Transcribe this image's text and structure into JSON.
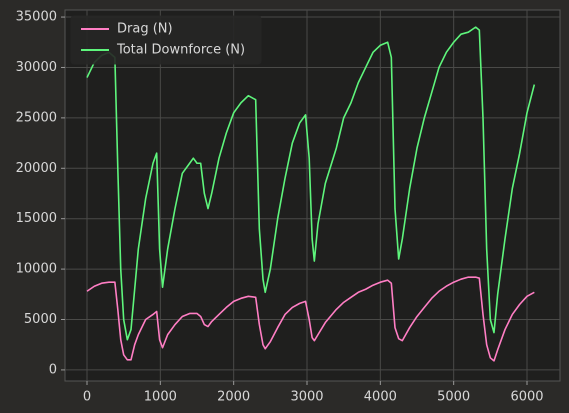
{
  "chart_data": {
    "type": "line",
    "x": [
      0,
      100,
      200,
      300,
      380,
      420,
      460,
      500,
      550,
      600,
      650,
      700,
      800,
      900,
      950,
      990,
      1030,
      1100,
      1200,
      1300,
      1400,
      1450,
      1500,
      1550,
      1600,
      1650,
      1700,
      1800,
      1900,
      2000,
      2100,
      2200,
      2300,
      2350,
      2400,
      2430,
      2500,
      2600,
      2700,
      2800,
      2900,
      2980,
      3030,
      3070,
      3100,
      3150,
      3250,
      3400,
      3500,
      3600,
      3700,
      3800,
      3900,
      4000,
      4100,
      4150,
      4200,
      4250,
      4300,
      4400,
      4500,
      4600,
      4700,
      4800,
      4900,
      5000,
      5100,
      5200,
      5300,
      5350,
      5400,
      5450,
      5500,
      5550,
      5600,
      5700,
      5800,
      5900,
      6000,
      6100
    ],
    "series": [
      {
        "name": "Drag (N)",
        "color": "#ff7ec4",
        "values": [
          7800,
          8300,
          8600,
          8700,
          8700,
          6000,
          3000,
          1500,
          1000,
          1000,
          2500,
          3500,
          5000,
          5500,
          5800,
          3000,
          2200,
          3500,
          4500,
          5300,
          5600,
          5600,
          5600,
          5300,
          4500,
          4300,
          4800,
          5500,
          6200,
          6800,
          7100,
          7300,
          7200,
          4500,
          2500,
          2100,
          2800,
          4200,
          5500,
          6200,
          6600,
          6800,
          5000,
          3200,
          2900,
          3500,
          4700,
          6000,
          6700,
          7200,
          7700,
          8000,
          8400,
          8700,
          8900,
          8600,
          4200,
          3100,
          2900,
          4200,
          5300,
          6200,
          7100,
          7800,
          8300,
          8700,
          9000,
          9200,
          9200,
          9100,
          5500,
          2500,
          1200,
          900,
          2000,
          4000,
          5500,
          6500,
          7300,
          7700
        ]
      },
      {
        "name": "Total Downforce (N)",
        "color": "#5ef57c",
        "values": [
          29000,
          30500,
          31200,
          31500,
          31000,
          20000,
          10000,
          5000,
          3000,
          4000,
          8000,
          12000,
          17000,
          20500,
          21500,
          12000,
          8200,
          12000,
          16000,
          19500,
          20500,
          21000,
          20500,
          20500,
          17500,
          16000,
          17500,
          21000,
          23500,
          25500,
          26500,
          27200,
          26800,
          14000,
          9000,
          7700,
          10000,
          15000,
          19000,
          22500,
          24500,
          25300,
          21000,
          13000,
          10800,
          14500,
          18500,
          22000,
          25000,
          26500,
          28500,
          30000,
          31500,
          32200,
          32500,
          31000,
          16000,
          11000,
          13000,
          18000,
          22000,
          25000,
          27500,
          30000,
          31500,
          32500,
          33300,
          33500,
          34000,
          33700,
          25000,
          12000,
          5000,
          3700,
          7500,
          13000,
          18000,
          21500,
          25500,
          28300
        ]
      }
    ],
    "xlim": [
      -300,
      6450
    ],
    "ylim": [
      -1100,
      35700
    ],
    "xticks": [
      0,
      1000,
      2000,
      3000,
      4000,
      5000,
      6000
    ],
    "yticks": [
      0,
      5000,
      10000,
      15000,
      20000,
      25000,
      30000,
      35000
    ],
    "grid": true,
    "legend": "upper left"
  }
}
